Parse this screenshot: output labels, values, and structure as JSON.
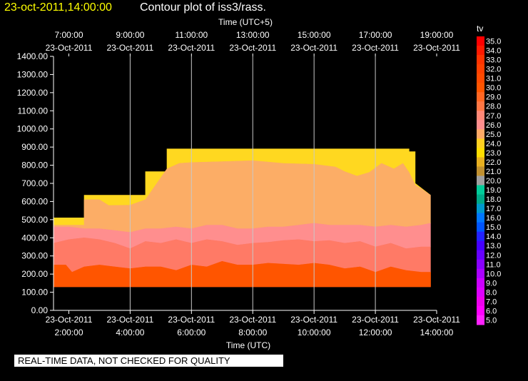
{
  "header": {
    "timestamp": "23-oct-2011,14:00:00",
    "title": "Contour plot of iss3/rass."
  },
  "note": "REAL-TIME DATA, NOT CHECKED FOR QUALITY",
  "colors": {
    "background": "#000000",
    "axis": "#ffffff",
    "grid": "#c8c8c8",
    "title_timestamp": "#ffff00"
  },
  "chart_data": {
    "type": "area",
    "top_axis_title": "Time (UTC+5)",
    "bottom_axis_title": "Time (UTC)",
    "colorbar_title": "tv",
    "x_range_utc_hours": [
      1.5,
      14.0
    ],
    "ylim": [
      0,
      1400
    ],
    "y_ticks": [
      "0.00",
      "100.00",
      "200.00",
      "300.00",
      "400.00",
      "500.00",
      "600.00",
      "700.00",
      "800.00",
      "900.00",
      "1000.00",
      "1100.00",
      "1200.00",
      "1300.00",
      "1400.00"
    ],
    "bottom_ticks": [
      {
        "t": 2,
        "date": "23-Oct-2011",
        "time": "2:00:00"
      },
      {
        "t": 4,
        "date": "23-Oct-2011",
        "time": "4:00:00"
      },
      {
        "t": 6,
        "date": "23-Oct-2011",
        "time": "6:00:00"
      },
      {
        "t": 8,
        "date": "23-Oct-2011",
        "time": "8:00:00"
      },
      {
        "t": 10,
        "date": "23-Oct-2011",
        "time": "10:00:00"
      },
      {
        "t": 12,
        "date": "23-Oct-2011",
        "time": "12:00:00"
      },
      {
        "t": 14,
        "date": "23-Oct-2011",
        "time": "14:00:00"
      }
    ],
    "top_ticks": [
      {
        "t": 2,
        "time": "7:00:00",
        "date": "23-Oct-2011"
      },
      {
        "t": 4,
        "time": "9:00:00",
        "date": "23-Oct-2011"
      },
      {
        "t": 6,
        "time": "11:00:00",
        "date": "23-Oct-2011"
      },
      {
        "t": 8,
        "time": "13:00:00",
        "date": "23-Oct-2011"
      },
      {
        "t": 10,
        "time": "15:00:00",
        "date": "23-Oct-2011"
      },
      {
        "t": 12,
        "time": "17:00:00",
        "date": "23-Oct-2011"
      },
      {
        "t": 14,
        "time": "19:00:00",
        "date": "23-Oct-2011"
      }
    ],
    "grid": true,
    "grid_times_utc": [
      4,
      6,
      8,
      10,
      12
    ],
    "colorbar_levels": [
      "35.0",
      "34.0",
      "33.0",
      "32.0",
      "31.0",
      "30.0",
      "29.0",
      "28.0",
      "27.0",
      "26.0",
      "25.0",
      "24.0",
      "23.0",
      "22.0",
      "21.0",
      "20.0",
      "19.0",
      "18.0",
      "17.0",
      "16.0",
      "15.0",
      "14.0",
      "13.0",
      "12.0",
      "11.0",
      "10.0",
      "9.0",
      "8.0",
      "7.0",
      "6.0",
      "5.0"
    ],
    "colorbar_colors": [
      "#ff0000",
      "#ff1a00",
      "#ff3300",
      "#ff4000",
      "#ff4a00",
      "#ff5500",
      "#ff6622",
      "#ff7744",
      "#ff8877",
      "#ff8e8e",
      "#ffaa66",
      "#ffd020",
      "#ffdd00",
      "#e8b020",
      "#c09030",
      "#a0a0a0",
      "#00cc99",
      "#00aa88",
      "#0099cc",
      "#0077ff",
      "#0055ff",
      "#2222ff",
      "#4400ff",
      "#6600ff",
      "#8800ff",
      "#aa00ff",
      "#cc00ff",
      "#dd00ff",
      "#ee00ee",
      "#ff00ff",
      "#ff22ff"
    ],
    "coverage": {
      "bottom": 130,
      "top": [
        [
          1.5,
          510
        ],
        [
          2.5,
          510
        ],
        [
          2.5,
          635
        ],
        [
          4.5,
          635
        ],
        [
          4.5,
          765
        ],
        [
          5.2,
          765
        ],
        [
          5.2,
          890
        ],
        [
          13.1,
          890
        ],
        [
          13.1,
          875
        ],
        [
          13.3,
          875
        ],
        [
          13.3,
          700
        ],
        [
          13.8,
          635
        ]
      ]
    },
    "bands": [
      {
        "value": 24.0,
        "color": "#ffd820",
        "lower": "coverage"
      },
      {
        "value": 25.0,
        "color": "#fcad66",
        "lower": [
          [
            1.5,
            470
          ],
          [
            2.5,
            470
          ],
          [
            2.5,
            610
          ],
          [
            3.0,
            610
          ],
          [
            3.3,
            578
          ],
          [
            4.0,
            580
          ],
          [
            4.5,
            610
          ],
          [
            5.2,
            780
          ],
          [
            5.6,
            810
          ],
          [
            6.0,
            815
          ],
          [
            7.0,
            820
          ],
          [
            8.0,
            825
          ],
          [
            9.0,
            810
          ],
          [
            10.0,
            805
          ],
          [
            10.7,
            790
          ],
          [
            11.0,
            765
          ],
          [
            11.4,
            740
          ],
          [
            11.8,
            760
          ],
          [
            12.2,
            810
          ],
          [
            12.6,
            780
          ],
          [
            12.9,
            810
          ],
          [
            13.1,
            760
          ],
          [
            13.3,
            690
          ],
          [
            13.5,
            670
          ],
          [
            13.8,
            635
          ]
        ]
      },
      {
        "value": 26.0,
        "color": "#ff8e8e",
        "lower": [
          [
            1.5,
            460
          ],
          [
            2.0,
            460
          ],
          [
            2.5,
            450
          ],
          [
            3.0,
            450
          ],
          [
            3.5,
            440
          ],
          [
            4.0,
            430
          ],
          [
            4.5,
            450
          ],
          [
            5.0,
            450
          ],
          [
            5.5,
            460
          ],
          [
            6.0,
            450
          ],
          [
            6.5,
            470
          ],
          [
            7.0,
            470
          ],
          [
            7.5,
            450
          ],
          [
            8.0,
            450
          ],
          [
            8.5,
            460
          ],
          [
            9.0,
            460
          ],
          [
            9.5,
            470
          ],
          [
            10.0,
            480
          ],
          [
            10.5,
            470
          ],
          [
            11.0,
            470
          ],
          [
            11.5,
            470
          ],
          [
            12.0,
            460
          ],
          [
            12.5,
            470
          ],
          [
            13.0,
            460
          ],
          [
            13.5,
            470
          ],
          [
            13.8,
            480
          ]
        ]
      },
      {
        "value": 27.0,
        "color": "#ff7a66",
        "lower": [
          [
            1.5,
            370
          ],
          [
            2.0,
            390
          ],
          [
            2.5,
            400
          ],
          [
            3.0,
            390
          ],
          [
            3.5,
            370
          ],
          [
            4.0,
            340
          ],
          [
            4.5,
            380
          ],
          [
            5.0,
            370
          ],
          [
            5.5,
            390
          ],
          [
            6.0,
            370
          ],
          [
            6.5,
            390
          ],
          [
            7.0,
            380
          ],
          [
            7.5,
            360
          ],
          [
            8.0,
            370
          ],
          [
            8.5,
            375
          ],
          [
            9.0,
            385
          ],
          [
            9.5,
            390
          ],
          [
            10.0,
            380
          ],
          [
            10.5,
            385
          ],
          [
            11.0,
            370
          ],
          [
            11.5,
            380
          ],
          [
            12.0,
            350
          ],
          [
            12.5,
            370
          ],
          [
            13.0,
            340
          ],
          [
            13.5,
            350
          ],
          [
            13.8,
            350
          ]
        ]
      },
      {
        "value": 28.0,
        "color": "#ff6a33",
        "lower": [
          [
            1.5,
            250
          ],
          [
            1.9,
            250
          ],
          [
            2.1,
            210
          ],
          [
            2.5,
            240
          ],
          [
            3.0,
            250
          ],
          [
            3.5,
            240
          ],
          [
            4.0,
            230
          ],
          [
            4.5,
            240
          ],
          [
            5.0,
            240
          ],
          [
            5.5,
            220
          ],
          [
            6.0,
            250
          ],
          [
            6.5,
            240
          ],
          [
            7.0,
            270
          ],
          [
            7.5,
            250
          ],
          [
            8.0,
            250
          ],
          [
            8.5,
            260
          ],
          [
            9.0,
            255
          ],
          [
            9.5,
            250
          ],
          [
            10.0,
            260
          ],
          [
            10.5,
            250
          ],
          [
            11.0,
            230
          ],
          [
            11.5,
            240
          ],
          [
            12.0,
            210
          ],
          [
            12.5,
            240
          ],
          [
            13.0,
            220
          ],
          [
            13.5,
            210
          ],
          [
            13.8,
            210
          ]
        ]
      },
      {
        "value": 29.0,
        "color": "#ff5500",
        "lower": "coverage_bottom"
      }
    ]
  }
}
